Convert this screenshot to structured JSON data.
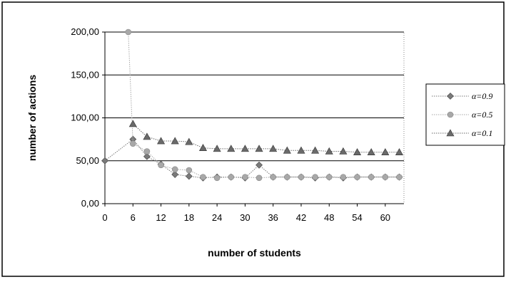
{
  "chart_data": {
    "type": "line",
    "title": "",
    "xlabel": "number of students",
    "ylabel": "number of actions",
    "xlim": [
      0,
      64
    ],
    "ylim": [
      0,
      200
    ],
    "x_ticks": [
      "0",
      "6",
      "12",
      "18",
      "24",
      "30",
      "36",
      "42",
      "48",
      "54",
      "60"
    ],
    "x_tick_values": [
      0,
      6,
      12,
      18,
      24,
      30,
      36,
      42,
      48,
      54,
      60
    ],
    "y_ticks": [
      "0,00",
      "50,00",
      "100,00",
      "150,00",
      "200,00"
    ],
    "y_tick_values": [
      0,
      50,
      100,
      150,
      200
    ],
    "grid": "horizontal",
    "legend_position": "right",
    "series": [
      {
        "name": "α=0.9",
        "marker": "diamond",
        "color": "#7a7a7a",
        "x": [
          0,
          6,
          9,
          12,
          15,
          18,
          21,
          24,
          27,
          30,
          33,
          36,
          39,
          42,
          45,
          48,
          51,
          54,
          57,
          60,
          63
        ],
        "y": [
          50,
          75,
          55,
          46,
          34,
          32,
          30,
          31,
          31,
          30,
          45,
          31,
          31,
          31,
          30,
          31,
          30,
          31,
          31,
          31,
          31
        ]
      },
      {
        "name": "α=0.5",
        "marker": "circle",
        "color": "#a8a8a8",
        "x": [
          5,
          6,
          9,
          12,
          15,
          18,
          21,
          24,
          27,
          30,
          33,
          36,
          39,
          42,
          45,
          48,
          51,
          54,
          57,
          60,
          63
        ],
        "y": [
          200,
          70,
          61,
          45,
          40,
          39,
          31,
          30,
          31,
          31,
          30,
          31,
          31,
          31,
          31,
          31,
          31,
          31,
          31,
          31,
          31
        ]
      },
      {
        "name": "α=0.1",
        "marker": "triangle",
        "color": "#6a6a6a",
        "x": [
          6,
          9,
          12,
          15,
          18,
          21,
          24,
          27,
          30,
          33,
          36,
          39,
          42,
          45,
          48,
          51,
          54,
          57,
          60,
          63
        ],
        "y": [
          93,
          78,
          73,
          73,
          72,
          65,
          64,
          64,
          64,
          64,
          64,
          62,
          62,
          62,
          61,
          61,
          60,
          60,
          60,
          60
        ]
      }
    ]
  }
}
